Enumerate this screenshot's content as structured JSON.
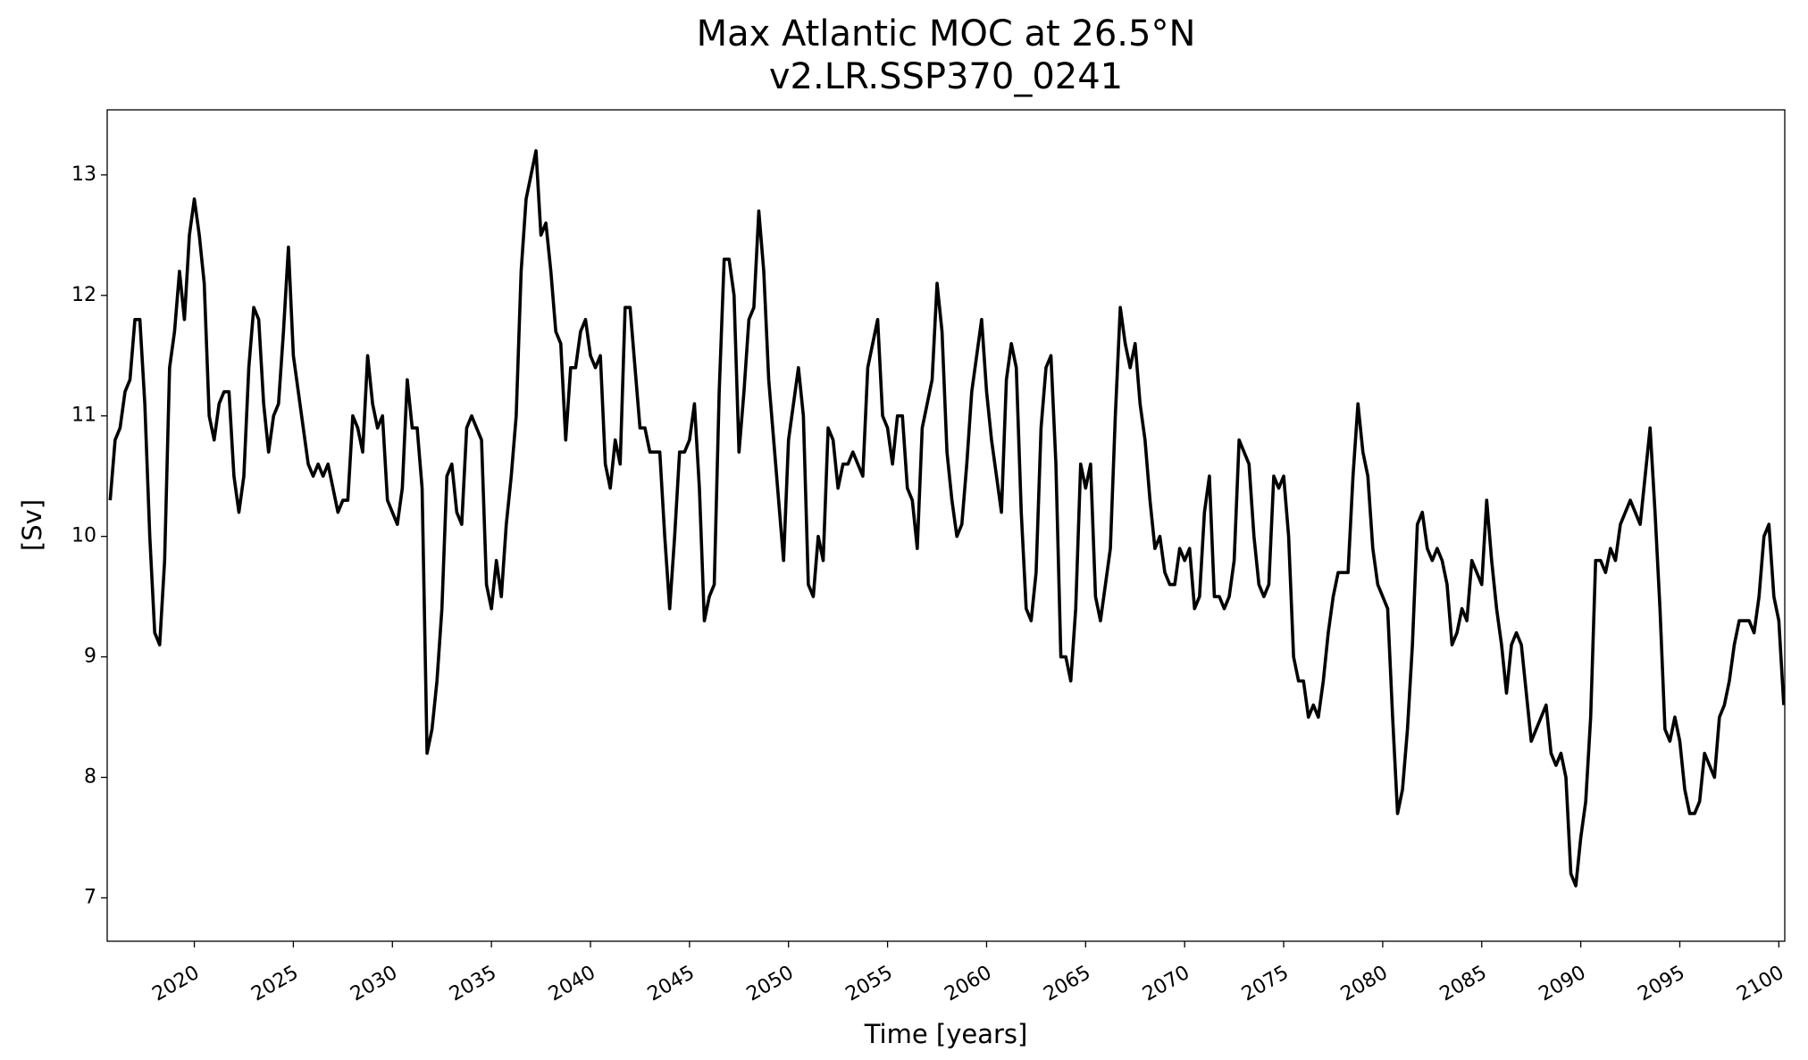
{
  "chart_data": {
    "type": "line",
    "title": "Max Atlantic MOC at 26.5°N",
    "subtitle": "v2.LR.SSP370_0241",
    "xlabel": "Time [years]",
    "ylabel": "[Sv]",
    "color": "#000000",
    "xlim": [
      2015.6,
      2100.3
    ],
    "ylim": [
      6.64,
      13.54
    ],
    "xticks": [
      2020,
      2025,
      2030,
      2035,
      2040,
      2045,
      2050,
      2055,
      2060,
      2065,
      2070,
      2075,
      2080,
      2085,
      2090,
      2095,
      2100
    ],
    "yticks": [
      7,
      8,
      9,
      10,
      11,
      12,
      13
    ],
    "x": [
      2015.75,
      2016,
      2016.25,
      2016.5,
      2016.75,
      2017,
      2017.25,
      2017.5,
      2017.75,
      2018,
      2018.25,
      2018.5,
      2018.75,
      2019,
      2019.25,
      2019.5,
      2019.75,
      2020,
      2020.25,
      2020.5,
      2020.75,
      2021,
      2021.25,
      2021.5,
      2021.75,
      2022,
      2022.25,
      2022.5,
      2022.75,
      2023,
      2023.25,
      2023.5,
      2023.75,
      2024,
      2024.25,
      2024.5,
      2024.75,
      2025,
      2025.25,
      2025.5,
      2025.75,
      2026,
      2026.25,
      2026.5,
      2026.75,
      2027,
      2027.25,
      2027.5,
      2027.75,
      2028,
      2028.25,
      2028.5,
      2028.75,
      2029,
      2029.25,
      2029.5,
      2029.75,
      2030,
      2030.25,
      2030.5,
      2030.75,
      2031,
      2031.25,
      2031.5,
      2031.75,
      2032,
      2032.25,
      2032.5,
      2032.75,
      2033,
      2033.25,
      2033.5,
      2033.75,
      2034,
      2034.25,
      2034.5,
      2034.75,
      2035,
      2035.25,
      2035.5,
      2035.75,
      2036,
      2036.25,
      2036.5,
      2036.75,
      2037,
      2037.25,
      2037.5,
      2037.75,
      2038,
      2038.25,
      2038.5,
      2038.75,
      2039,
      2039.25,
      2039.5,
      2039.75,
      2040,
      2040.25,
      2040.5,
      2040.75,
      2041,
      2041.25,
      2041.5,
      2041.75,
      2042,
      2042.25,
      2042.5,
      2042.75,
      2043,
      2043.25,
      2043.5,
      2043.75,
      2044,
      2044.25,
      2044.5,
      2044.75,
      2045,
      2045.25,
      2045.5,
      2045.75,
      2046,
      2046.25,
      2046.5,
      2046.75,
      2047,
      2047.25,
      2047.5,
      2047.75,
      2048,
      2048.25,
      2048.5,
      2048.75,
      2049,
      2049.25,
      2049.5,
      2049.75,
      2050,
      2050.25,
      2050.5,
      2050.75,
      2051,
      2051.25,
      2051.5,
      2051.75,
      2052,
      2052.25,
      2052.5,
      2052.75,
      2053,
      2053.25,
      2053.5,
      2053.75,
      2054,
      2054.25,
      2054.5,
      2054.75,
      2055,
      2055.25,
      2055.5,
      2055.75,
      2056,
      2056.25,
      2056.5,
      2056.75,
      2057,
      2057.25,
      2057.5,
      2057.75,
      2058,
      2058.25,
      2058.5,
      2058.75,
      2059,
      2059.25,
      2059.5,
      2059.75,
      2060,
      2060.25,
      2060.5,
      2060.75,
      2061,
      2061.25,
      2061.5,
      2061.75,
      2062,
      2062.25,
      2062.5,
      2062.75,
      2063,
      2063.25,
      2063.5,
      2063.75,
      2064,
      2064.25,
      2064.5,
      2064.75,
      2065,
      2065.25,
      2065.5,
      2065.75,
      2066,
      2066.25,
      2066.5,
      2066.75,
      2067,
      2067.25,
      2067.5,
      2067.75,
      2068,
      2068.25,
      2068.5,
      2068.75,
      2069,
      2069.25,
      2069.5,
      2069.75,
      2070,
      2070.25,
      2070.5,
      2070.75,
      2071,
      2071.25,
      2071.5,
      2071.75,
      2072,
      2072.25,
      2072.5,
      2072.75,
      2073,
      2073.25,
      2073.5,
      2073.75,
      2074,
      2074.25,
      2074.5,
      2074.75,
      2075,
      2075.25,
      2075.5,
      2075.75,
      2076,
      2076.25,
      2076.5,
      2076.75,
      2077,
      2077.25,
      2077.5,
      2077.75,
      2078,
      2078.25,
      2078.5,
      2078.75,
      2079,
      2079.25,
      2079.5,
      2079.75,
      2080,
      2080.25,
      2080.5,
      2080.75,
      2081,
      2081.25,
      2081.5,
      2081.75,
      2082,
      2082.25,
      2082.5,
      2082.75,
      2083,
      2083.25,
      2083.5,
      2083.75,
      2084,
      2084.25,
      2084.5,
      2084.75,
      2085,
      2085.25,
      2085.5,
      2085.75,
      2086,
      2086.25,
      2086.5,
      2086.75,
      2087,
      2087.25,
      2087.5,
      2087.75,
      2088,
      2088.25,
      2088.5,
      2088.75,
      2089,
      2089.25,
      2089.5,
      2089.75,
      2090,
      2090.25,
      2090.5,
      2090.75,
      2091,
      2091.25,
      2091.5,
      2091.75,
      2092,
      2092.25,
      2092.5,
      2092.75,
      2093,
      2093.25,
      2093.5,
      2093.75,
      2094,
      2094.25,
      2094.5,
      2094.75,
      2095,
      2095.25,
      2095.5,
      2095.75,
      2096,
      2096.25,
      2096.5,
      2096.75,
      2097,
      2097.25,
      2097.5,
      2097.75,
      2098,
      2098.25,
      2098.5,
      2098.75,
      2099,
      2099.25,
      2099.5,
      2099.75,
      2100,
      2100.25
    ],
    "values": [
      10.3,
      10.8,
      10.9,
      11.2,
      11.3,
      11.8,
      11.8,
      11.1,
      10.0,
      9.2,
      9.1,
      9.8,
      11.4,
      11.7,
      12.2,
      11.8,
      12.5,
      12.8,
      12.5,
      12.1,
      11.0,
      10.8,
      11.1,
      11.2,
      11.2,
      10.5,
      10.2,
      10.5,
      11.4,
      11.9,
      11.8,
      11.1,
      10.7,
      11.0,
      11.1,
      11.7,
      12.4,
      11.5,
      11.2,
      10.9,
      10.6,
      10.5,
      10.6,
      10.5,
      10.6,
      10.4,
      10.2,
      10.3,
      10.3,
      11.0,
      10.9,
      10.7,
      11.5,
      11.1,
      10.9,
      11.0,
      10.3,
      10.2,
      10.1,
      10.4,
      11.3,
      10.9,
      10.9,
      10.4,
      8.2,
      8.4,
      8.8,
      9.4,
      10.5,
      10.6,
      10.2,
      10.1,
      10.9,
      11.0,
      10.9,
      10.8,
      9.6,
      9.4,
      9.8,
      9.5,
      10.1,
      10.5,
      11.0,
      12.2,
      12.8,
      13.0,
      13.2,
      12.5,
      12.6,
      12.2,
      11.7,
      11.6,
      10.8,
      11.4,
      11.4,
      11.7,
      11.8,
      11.5,
      11.4,
      11.5,
      10.6,
      10.4,
      10.8,
      10.6,
      11.9,
      11.9,
      11.4,
      10.9,
      10.9,
      10.7,
      10.7,
      10.7,
      10.0,
      9.4,
      10.0,
      10.7,
      10.7,
      10.8,
      11.1,
      10.4,
      9.3,
      9.5,
      9.6,
      11.2,
      12.3,
      12.3,
      12.0,
      10.7,
      11.2,
      11.8,
      11.9,
      12.7,
      12.2,
      11.3,
      10.8,
      10.3,
      9.8,
      10.8,
      11.1,
      11.4,
      11.0,
      9.6,
      9.5,
      10.0,
      9.8,
      10.9,
      10.8,
      10.4,
      10.6,
      10.6,
      10.7,
      10.6,
      10.5,
      11.4,
      11.6,
      11.8,
      11.0,
      10.9,
      10.6,
      11.0,
      11.0,
      10.4,
      10.3,
      9.9,
      10.9,
      11.1,
      11.3,
      12.1,
      11.7,
      10.7,
      10.3,
      10.0,
      10.1,
      10.6,
      11.2,
      11.5,
      11.8,
      11.2,
      10.8,
      10.5,
      10.2,
      11.3,
      11.6,
      11.4,
      10.2,
      9.4,
      9.3,
      9.7,
      10.9,
      11.4,
      11.5,
      10.6,
      9.0,
      9.0,
      8.8,
      9.4,
      10.6,
      10.4,
      10.6,
      9.5,
      9.3,
      9.6,
      9.9,
      11.0,
      11.9,
      11.6,
      11.4,
      11.6,
      11.1,
      10.8,
      10.3,
      9.9,
      10.0,
      9.7,
      9.6,
      9.6,
      9.9,
      9.8,
      9.9,
      9.4,
      9.5,
      10.2,
      10.5,
      9.5,
      9.5,
      9.4,
      9.5,
      9.8,
      10.8,
      10.7,
      10.6,
      10.0,
      9.6,
      9.5,
      9.6,
      10.5,
      10.4,
      10.5,
      10.0,
      9.0,
      8.8,
      8.8,
      8.5,
      8.6,
      8.5,
      8.8,
      9.2,
      9.5,
      9.7,
      9.7,
      9.7,
      10.5,
      11.1,
      10.7,
      10.5,
      9.9,
      9.6,
      9.5,
      9.4,
      8.5,
      7.7,
      7.9,
      8.4,
      9.1,
      10.1,
      10.2,
      9.9,
      9.8,
      9.9,
      9.8,
      9.6,
      9.1,
      9.2,
      9.4,
      9.3,
      9.8,
      9.7,
      9.6,
      10.3,
      9.8,
      9.4,
      9.1,
      8.7,
      9.1,
      9.2,
      9.1,
      8.7,
      8.3,
      8.4,
      8.5,
      8.6,
      8.2,
      8.1,
      8.2,
      8.0,
      7.2,
      7.1,
      7.5,
      7.8,
      8.5,
      9.8,
      9.8,
      9.7,
      9.9,
      9.8,
      10.1,
      10.2,
      10.3,
      10.2,
      10.1,
      10.5,
      10.9,
      10.2,
      9.4,
      8.4,
      8.3,
      8.5,
      8.3,
      7.9,
      7.7,
      7.7,
      7.8,
      8.2,
      8.1,
      8.0,
      8.5,
      8.6,
      8.8,
      9.1,
      9.3,
      9.3,
      9.3,
      9.2,
      9.5,
      10.0,
      10.1,
      9.5,
      9.3,
      8.6
    ]
  }
}
